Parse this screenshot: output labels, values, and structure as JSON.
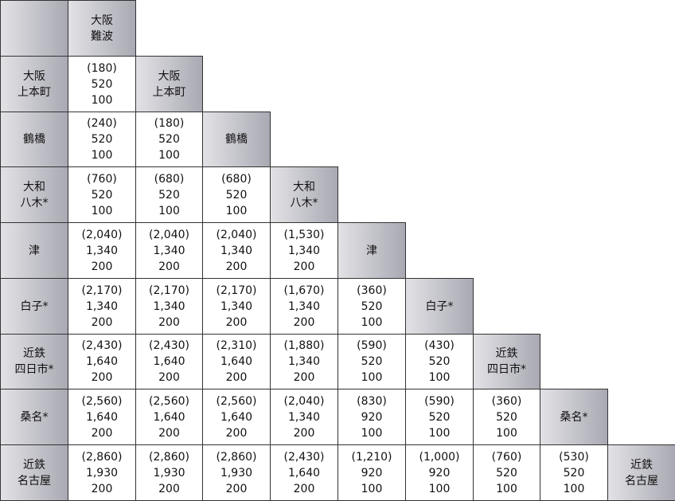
{
  "stations": [
    {
      "lines": [
        "大阪",
        "難波"
      ]
    },
    {
      "lines": [
        "大阪",
        "上本町"
      ]
    },
    {
      "lines": [
        "鶴橋"
      ]
    },
    {
      "lines": [
        "大和",
        "八木*"
      ]
    },
    {
      "lines": [
        "津"
      ]
    },
    {
      "lines": [
        "白子*"
      ]
    },
    {
      "lines": [
        "近鉄",
        "四日市*"
      ]
    },
    {
      "lines": [
        "桑名*"
      ]
    },
    {
      "lines": [
        "近鉄",
        "名古屋"
      ]
    }
  ],
  "fares": [
    [
      [
        "(180)",
        "520",
        "100"
      ]
    ],
    [
      [
        "(240)",
        "520",
        "100"
      ],
      [
        "(180)",
        "520",
        "100"
      ]
    ],
    [
      [
        "(760)",
        "520",
        "100"
      ],
      [
        "(680)",
        "520",
        "100"
      ],
      [
        "(680)",
        "520",
        "100"
      ]
    ],
    [
      [
        "(2,040)",
        "1,340",
        "200"
      ],
      [
        "(2,040)",
        "1,340",
        "200"
      ],
      [
        "(2,040)",
        "1,340",
        "200"
      ],
      [
        "(1,530)",
        "1,340",
        "200"
      ]
    ],
    [
      [
        "(2,170)",
        "1,340",
        "200"
      ],
      [
        "(2,170)",
        "1,340",
        "200"
      ],
      [
        "(2,170)",
        "1,340",
        "200"
      ],
      [
        "(1,670)",
        "1,340",
        "200"
      ],
      [
        "(360)",
        "520",
        "100"
      ]
    ],
    [
      [
        "(2,430)",
        "1,640",
        "200"
      ],
      [
        "(2,430)",
        "1,640",
        "200"
      ],
      [
        "(2,310)",
        "1,640",
        "200"
      ],
      [
        "(1,880)",
        "1,340",
        "200"
      ],
      [
        "(590)",
        "520",
        "100"
      ],
      [
        "(430)",
        "520",
        "100"
      ]
    ],
    [
      [
        "(2,560)",
        "1,640",
        "200"
      ],
      [
        "(2,560)",
        "1,640",
        "200"
      ],
      [
        "(2,560)",
        "1,640",
        "200"
      ],
      [
        "(2,040)",
        "1,340",
        "200"
      ],
      [
        "(830)",
        "920",
        "100"
      ],
      [
        "(590)",
        "520",
        "100"
      ],
      [
        "(360)",
        "520",
        "100"
      ]
    ],
    [
      [
        "(2,860)",
        "1,930",
        "200"
      ],
      [
        "(2,860)",
        "1,930",
        "200"
      ],
      [
        "(2,860)",
        "1,930",
        "200"
      ],
      [
        "(2,430)",
        "1,640",
        "200"
      ],
      [
        "(1,210)",
        "920",
        "100"
      ],
      [
        "(1,000)",
        "920",
        "100"
      ],
      [
        "(760)",
        "520",
        "100"
      ],
      [
        "(530)",
        "520",
        "100"
      ]
    ]
  ]
}
